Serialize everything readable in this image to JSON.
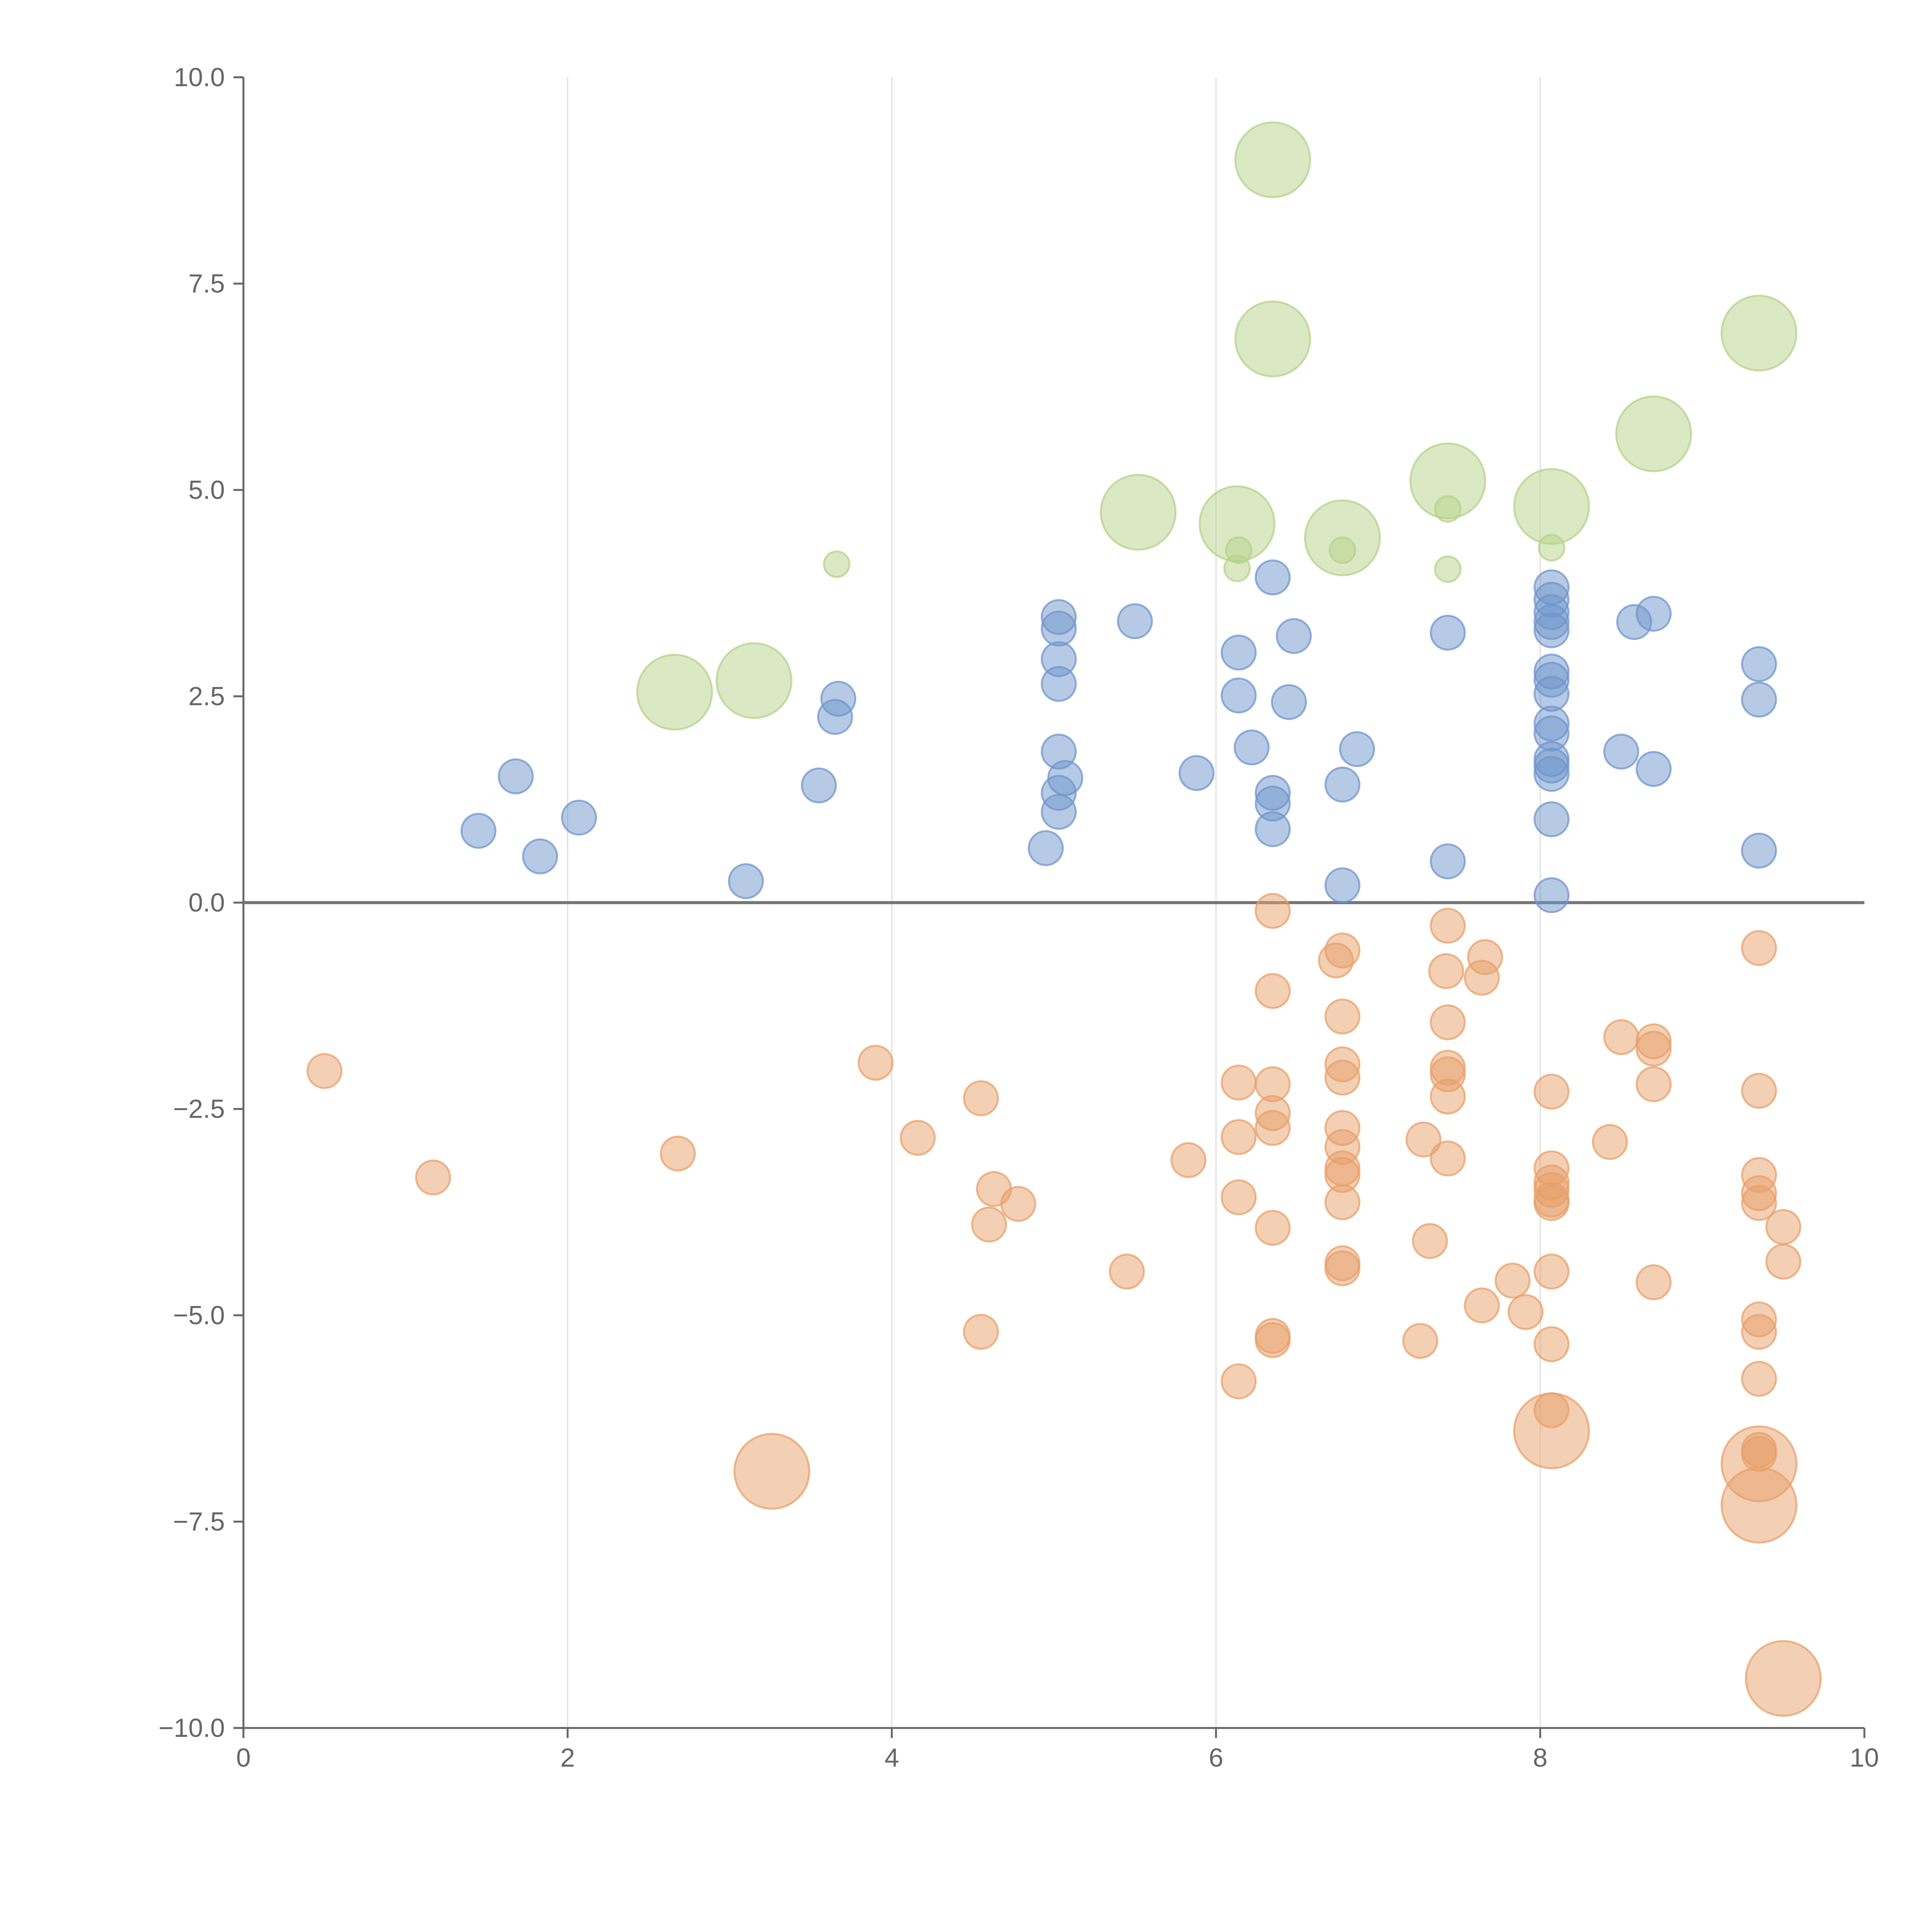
{
  "chart_data": {
    "type": "scatter",
    "title": "",
    "xlabel": "",
    "ylabel": "",
    "xlim": [
      0,
      10
    ],
    "ylim": [
      -10,
      10
    ],
    "grid": {
      "x": true,
      "y": false
    },
    "zero_line": true,
    "legend": "none",
    "x_ticks": [
      {
        "value": 0,
        "label": "0"
      },
      {
        "value": 2,
        "label": "2"
      },
      {
        "value": 4,
        "label": "4"
      },
      {
        "value": 6,
        "label": "6"
      },
      {
        "value": 8,
        "label": "8"
      },
      {
        "value": 10,
        "label": "10"
      }
    ],
    "y_ticks": [
      {
        "value": 10,
        "label": "10.0"
      },
      {
        "value": 7.5,
        "label": "7.5"
      },
      {
        "value": 5,
        "label": "5.0"
      },
      {
        "value": 2.5,
        "label": "2.5"
      },
      {
        "value": 0,
        "label": "0.0"
      },
      {
        "value": -2.5,
        "label": "−2.5"
      },
      {
        "value": -5,
        "label": "−5.0"
      },
      {
        "value": -7.5,
        "label": "−7.5"
      },
      {
        "value": -10,
        "label": "−10.0"
      }
    ],
    "series": [
      {
        "color": "#6f96cc",
        "size": 1,
        "points": [
          [
            1.45,
            0.87
          ],
          [
            1.68,
            1.53
          ],
          [
            1.83,
            0.56
          ],
          [
            2.07,
            1.03
          ],
          [
            3.1,
            0.26
          ],
          [
            3.55,
            1.42
          ],
          [
            3.65,
            2.25
          ],
          [
            3.67,
            2.47
          ],
          [
            4.95,
            0.66
          ],
          [
            5.03,
            1.1
          ],
          [
            5.03,
            1.33
          ],
          [
            5.07,
            1.51
          ],
          [
            5.03,
            1.83
          ],
          [
            5.03,
            2.65
          ],
          [
            5.03,
            2.95
          ],
          [
            5.03,
            3.32
          ],
          [
            5.03,
            3.46
          ],
          [
            5.5,
            3.41
          ],
          [
            5.88,
            1.57
          ],
          [
            6.14,
            2.51
          ],
          [
            6.14,
            3.03
          ],
          [
            6.22,
            1.88
          ],
          [
            6.35,
            0.89
          ],
          [
            6.35,
            1.2
          ],
          [
            6.35,
            1.33
          ],
          [
            6.35,
            3.94
          ],
          [
            6.45,
            2.43
          ],
          [
            6.48,
            3.23
          ],
          [
            6.78,
            1.43
          ],
          [
            6.78,
            0.21
          ],
          [
            6.87,
            1.86
          ],
          [
            7.43,
            0.5
          ],
          [
            7.43,
            3.27
          ],
          [
            8.07,
            0.09
          ],
          [
            8.07,
            1.01
          ],
          [
            8.07,
            1.56
          ],
          [
            8.07,
            1.66
          ],
          [
            8.07,
            1.74
          ],
          [
            8.07,
            2.05
          ],
          [
            8.07,
            2.17
          ],
          [
            8.07,
            2.53
          ],
          [
            8.07,
            2.7
          ],
          [
            8.07,
            2.8
          ],
          [
            8.07,
            3.3
          ],
          [
            8.07,
            3.4
          ],
          [
            8.07,
            3.52
          ],
          [
            8.07,
            3.67
          ],
          [
            8.07,
            3.82
          ],
          [
            8.5,
            1.83
          ],
          [
            8.58,
            3.4
          ],
          [
            8.7,
            1.62
          ],
          [
            8.7,
            3.5
          ],
          [
            9.35,
            0.63
          ],
          [
            9.35,
            2.46
          ],
          [
            9.35,
            2.89
          ]
        ]
      },
      {
        "color": "#e8a06a",
        "size": 1,
        "points": [
          [
            0.5,
            -2.04
          ],
          [
            1.17,
            -3.33
          ],
          [
            2.68,
            -3.04
          ],
          [
            3.9,
            -1.94
          ],
          [
            4.16,
            -2.85
          ],
          [
            4.55,
            -2.37
          ],
          [
            4.55,
            -5.2
          ],
          [
            4.6,
            -3.9
          ],
          [
            4.63,
            -3.47
          ],
          [
            4.78,
            -3.65
          ],
          [
            5.45,
            -4.47
          ],
          [
            5.83,
            -3.12
          ],
          [
            6.14,
            -2.18
          ],
          [
            6.14,
            -2.84
          ],
          [
            6.14,
            -3.57
          ],
          [
            6.14,
            -5.8
          ],
          [
            6.35,
            -0.1
          ],
          [
            6.35,
            -1.07
          ],
          [
            6.35,
            -2.2
          ],
          [
            6.35,
            -2.55
          ],
          [
            6.35,
            -2.73
          ],
          [
            6.35,
            -3.94
          ],
          [
            6.35,
            -5.25
          ],
          [
            6.35,
            -5.3
          ],
          [
            6.74,
            -0.7
          ],
          [
            6.78,
            -0.58
          ],
          [
            6.78,
            -1.38
          ],
          [
            6.78,
            -1.96
          ],
          [
            6.78,
            -2.12
          ],
          [
            6.78,
            -2.73
          ],
          [
            6.78,
            -2.96
          ],
          [
            6.78,
            -3.22
          ],
          [
            6.78,
            -3.3
          ],
          [
            6.78,
            -3.63
          ],
          [
            6.78,
            -4.37
          ],
          [
            6.78,
            -4.43
          ],
          [
            7.26,
            -5.31
          ],
          [
            7.28,
            -2.87
          ],
          [
            7.32,
            -4.1
          ],
          [
            7.42,
            -0.83
          ],
          [
            7.43,
            -0.28
          ],
          [
            7.43,
            -1.45
          ],
          [
            7.43,
            -2.0
          ],
          [
            7.43,
            -2.08
          ],
          [
            7.43,
            -2.35
          ],
          [
            7.43,
            -3.1
          ],
          [
            7.64,
            -0.91
          ],
          [
            7.64,
            -4.88
          ],
          [
            7.66,
            -0.66
          ],
          [
            7.83,
            -4.58
          ],
          [
            7.91,
            -4.96
          ],
          [
            8.07,
            -2.29
          ],
          [
            8.07,
            -3.22
          ],
          [
            8.07,
            -3.39
          ],
          [
            8.07,
            -3.48
          ],
          [
            8.07,
            -3.6
          ],
          [
            8.07,
            -3.64
          ],
          [
            8.07,
            -4.47
          ],
          [
            8.07,
            -5.35
          ],
          [
            8.07,
            -6.15
          ],
          [
            8.43,
            -2.9
          ],
          [
            8.5,
            -1.63
          ],
          [
            8.7,
            -1.68
          ],
          [
            8.7,
            -1.77
          ],
          [
            8.7,
            -2.2
          ],
          [
            8.7,
            -4.6
          ],
          [
            9.35,
            -0.55
          ],
          [
            9.35,
            -2.28
          ],
          [
            9.35,
            -3.3
          ],
          [
            9.35,
            -3.52
          ],
          [
            9.35,
            -3.64
          ],
          [
            9.35,
            -5.05
          ],
          [
            9.35,
            -5.2
          ],
          [
            9.35,
            -5.77
          ],
          [
            9.35,
            -6.63
          ],
          [
            9.35,
            -6.68
          ],
          [
            9.5,
            -3.93
          ],
          [
            9.5,
            -4.35
          ]
        ]
      },
      {
        "color": "#e8a06a",
        "size": 2.2,
        "points": [
          [
            3.26,
            -6.89
          ],
          [
            8.07,
            -6.4
          ],
          [
            9.35,
            -6.8
          ],
          [
            9.35,
            -7.3
          ],
          [
            9.5,
            -9.4
          ]
        ]
      },
      {
        "color": "#b7d28a",
        "size": 0.75,
        "points": [
          [
            3.66,
            4.1
          ],
          [
            6.13,
            4.05
          ],
          [
            6.14,
            4.27
          ],
          [
            6.78,
            4.27
          ],
          [
            7.43,
            4.04
          ],
          [
            7.43,
            4.77
          ],
          [
            8.07,
            4.3
          ]
        ]
      },
      {
        "color": "#b7d28a",
        "size": 2.2,
        "points": [
          [
            2.66,
            2.55
          ],
          [
            3.15,
            2.69
          ],
          [
            5.52,
            4.73
          ],
          [
            6.13,
            4.59
          ],
          [
            6.35,
            6.83
          ],
          [
            6.35,
            9.0
          ],
          [
            6.78,
            4.42
          ],
          [
            7.43,
            5.11
          ],
          [
            8.07,
            4.8
          ],
          [
            8.7,
            5.68
          ],
          [
            9.35,
            6.9
          ]
        ]
      }
    ]
  }
}
